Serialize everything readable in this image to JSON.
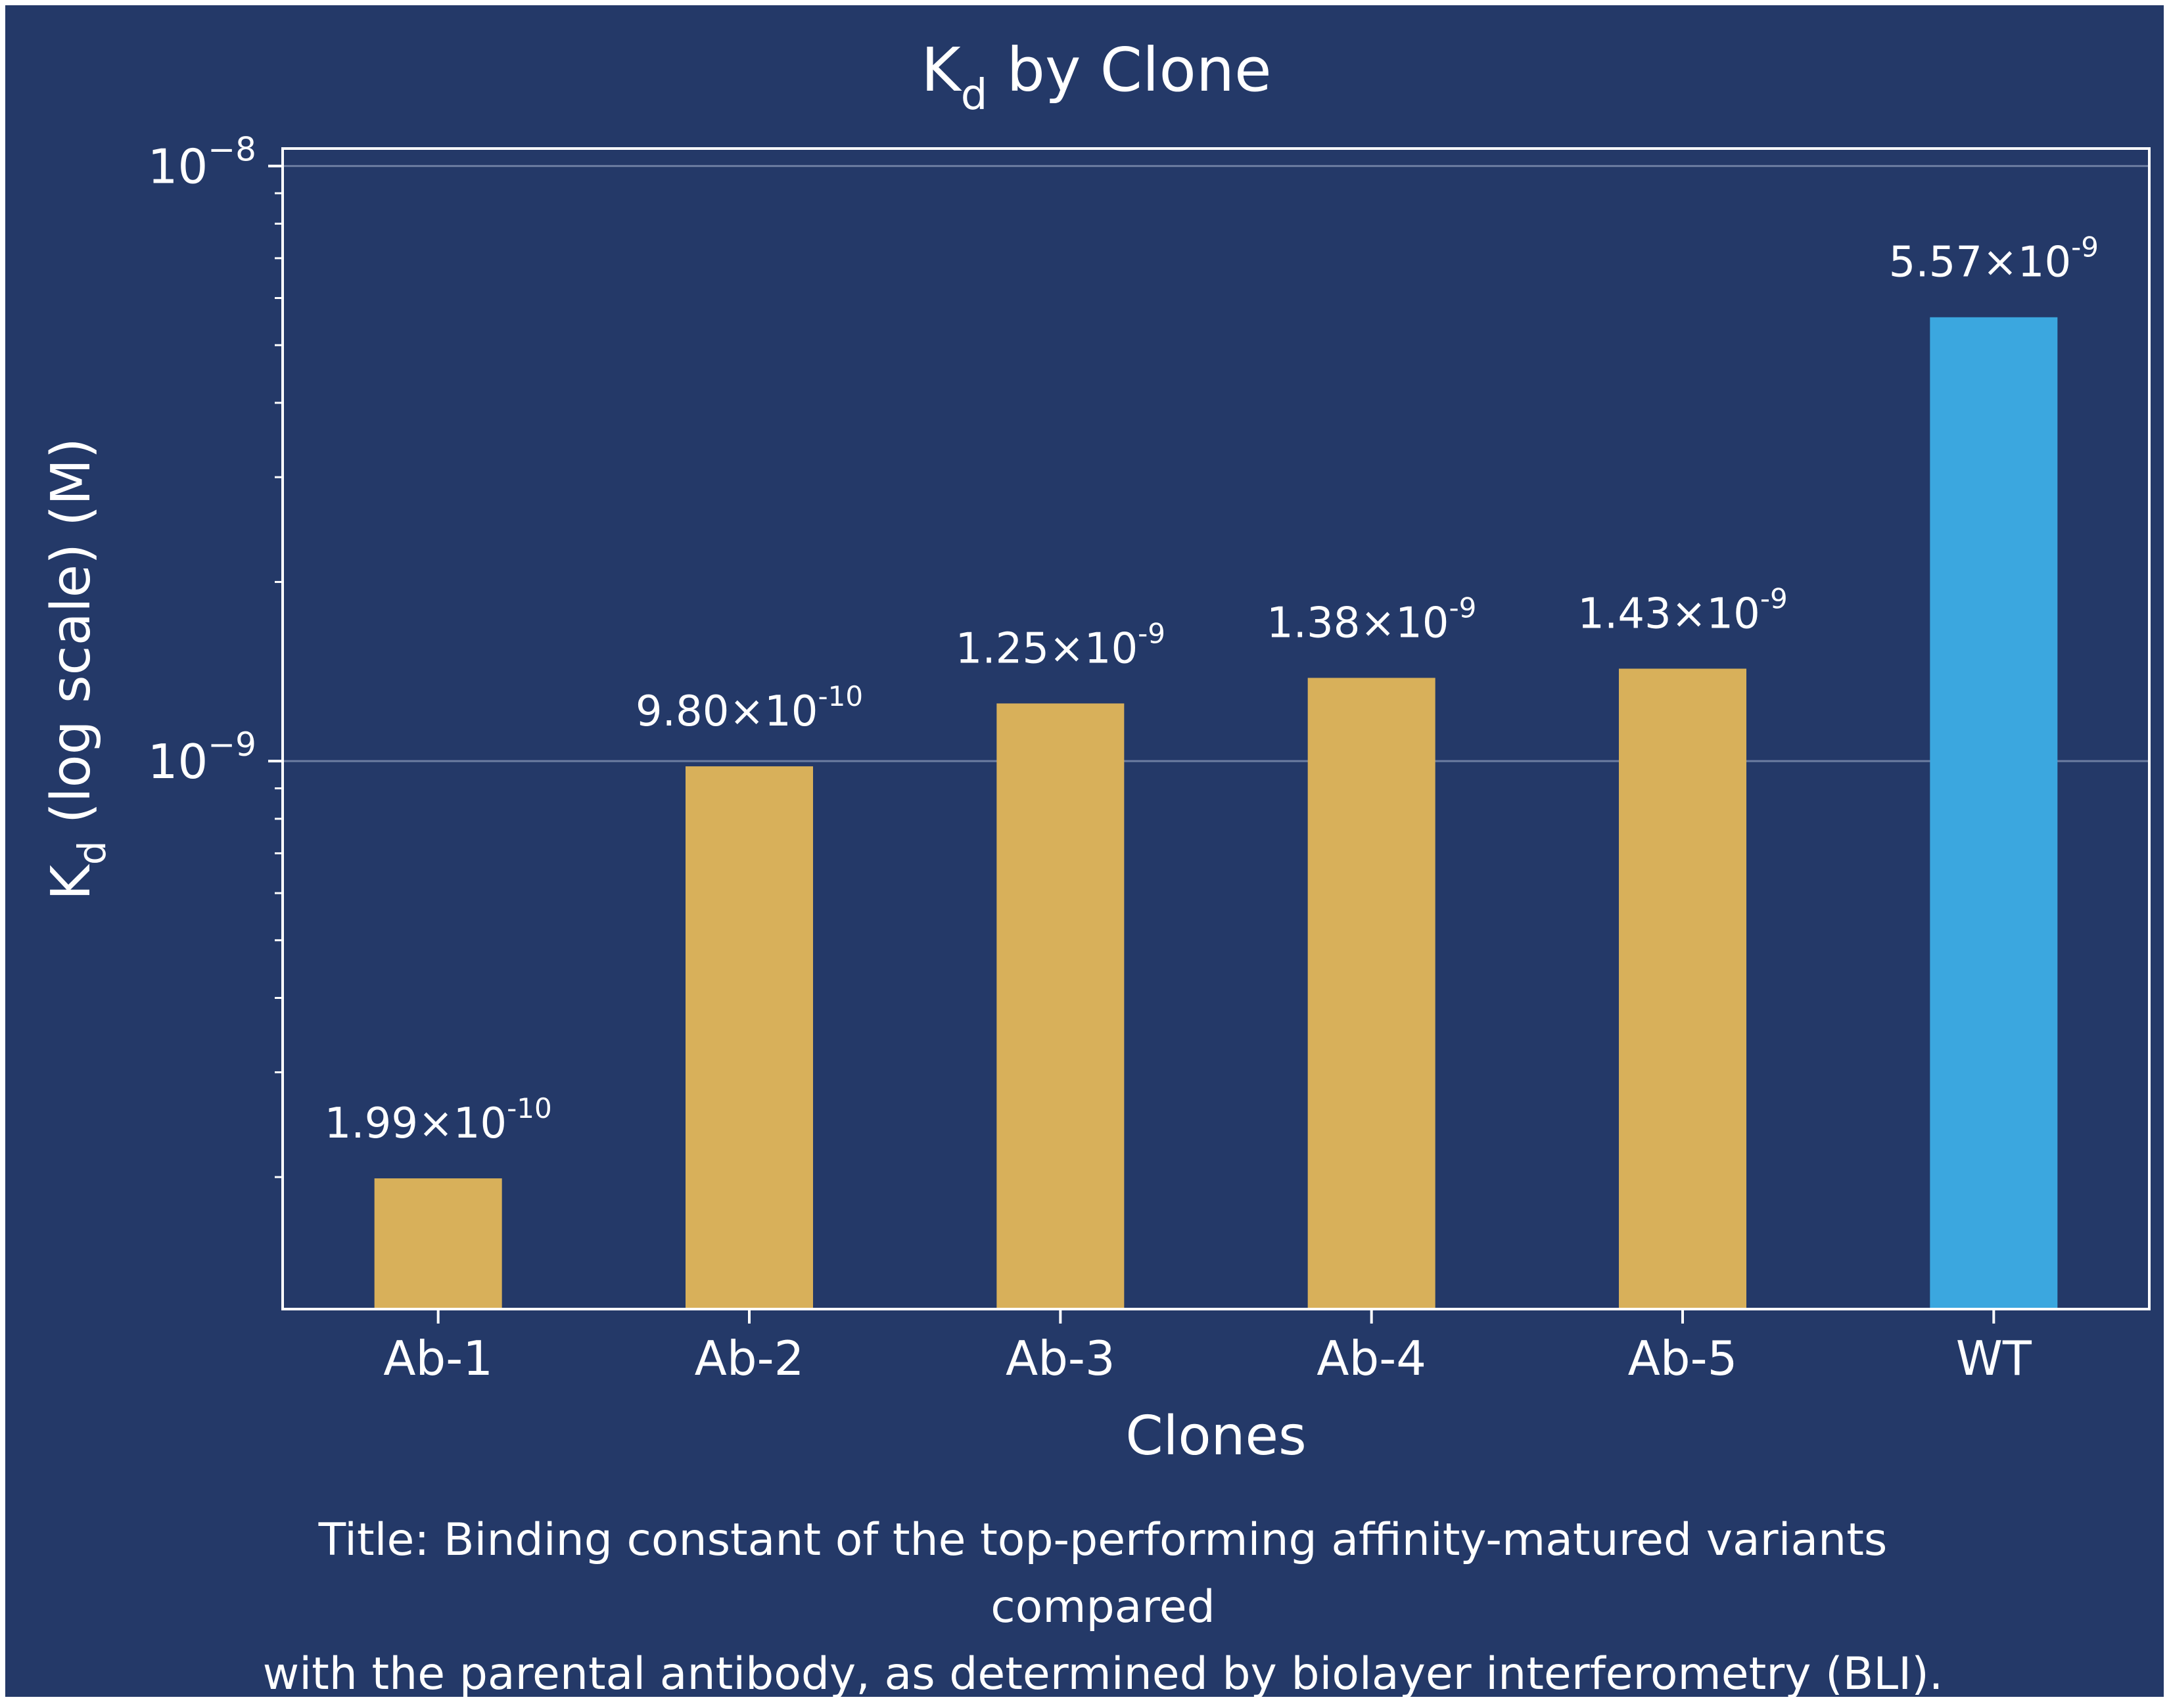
{
  "colors": {
    "background": "#243968",
    "bar_variant": "#d8b05a",
    "bar_reference": "#3ba7df",
    "text": "#ffffff",
    "grid": "#7f8fb0"
  },
  "caption": {
    "line1": "Title: Binding constant of the top-performing affinity-matured variants compared",
    "line2": "with the parental antibody, as determined by biolayer interferometry (BLI)."
  },
  "chart_data": {
    "type": "bar",
    "title": {
      "main": "K",
      "sub": "d",
      "rest": " by Clone"
    },
    "xlabel": "Clones",
    "ylabel": {
      "main": "K",
      "sub": "d",
      "rest": " (log scale)  (M)"
    },
    "yscale": "log",
    "ylim": [
      1.2e-10,
      1.07e-08
    ],
    "grid": "y-major",
    "categories": [
      "Ab-1",
      "Ab-2",
      "Ab-3",
      "Ab-4",
      "Ab-5",
      "WT"
    ],
    "values": [
      1.99e-10,
      9.8e-10,
      1.25e-09,
      1.38e-09,
      1.43e-09,
      5.57e-09
    ],
    "bar_labels": [
      {
        "mant": "1.99×10",
        "exp": "-10"
      },
      {
        "mant": "9.80×10",
        "exp": "-10"
      },
      {
        "mant": "1.25×10",
        "exp": "-9"
      },
      {
        "mant": "1.38×10",
        "exp": "-9"
      },
      {
        "mant": "1.43×10",
        "exp": "-9"
      },
      {
        "mant": "5.57×10",
        "exp": "-9"
      }
    ],
    "bar_colors": [
      "variant",
      "variant",
      "variant",
      "variant",
      "variant",
      "reference"
    ],
    "yticks_major": [
      {
        "value": 1e-09,
        "mant": "10",
        "exp": "−9"
      },
      {
        "value": 1e-08,
        "mant": "10",
        "exp": "−8"
      }
    ]
  }
}
